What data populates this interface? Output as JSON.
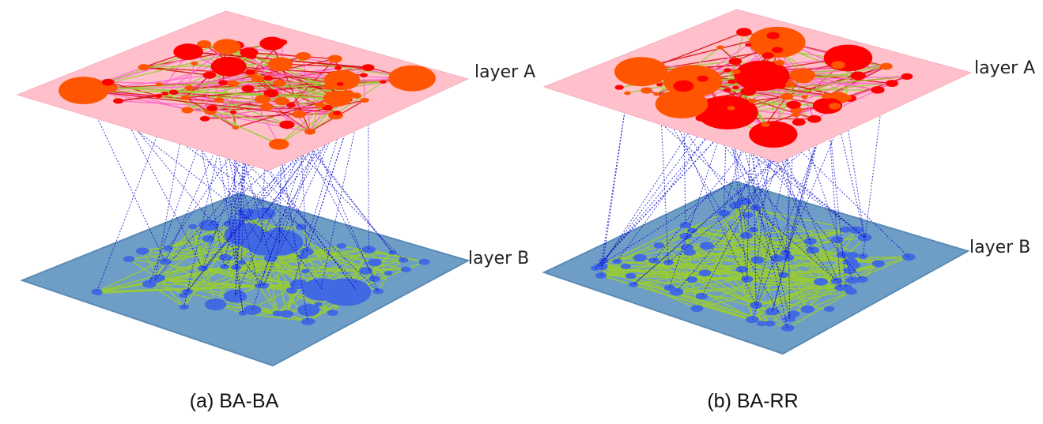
{
  "panels": [
    {
      "caption": "(a) BA-BA",
      "top_layer_label": "layer A",
      "bottom_layer_label": "layer B"
    },
    {
      "caption": "(b) BA-RR",
      "top_layer_label": "layer A",
      "bottom_layer_label": "layer B"
    }
  ],
  "colors": {
    "top_plane": "#ffc0cb",
    "bottom_plane": "#6e9ec6",
    "bottom_plane_edge": "#5a8bb5",
    "top_node_red": "#ff0000",
    "top_node_orange": "#ff5500",
    "top_edge_red": "#d81010",
    "top_edge_pink": "#ff66cc",
    "top_edge_green": "#9acd32",
    "bottom_node": "#4169e1",
    "bottom_edge": "#9acd32",
    "interlayer_edge": "#0000cc"
  }
}
